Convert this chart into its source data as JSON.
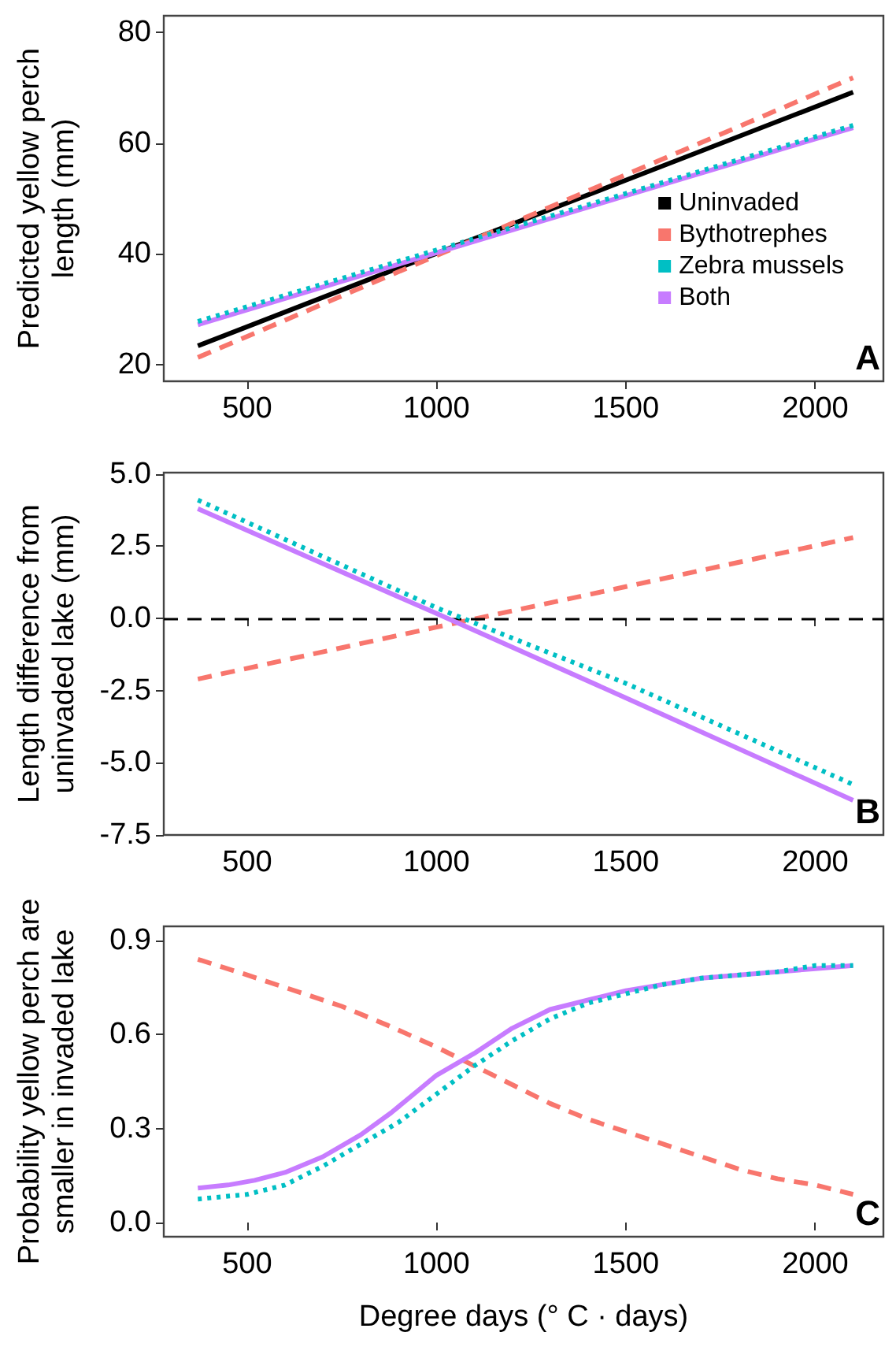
{
  "chart_data": [
    {
      "type": "line",
      "ylabel": "Predicted yellow perch\nlength (mm)",
      "x": [
        370,
        1000,
        1500,
        2100
      ],
      "xlim": [
        280,
        2180
      ],
      "xticks": [
        500,
        1000,
        1500,
        2000
      ],
      "ylim": [
        17,
        83
      ],
      "yticks": [
        20,
        40,
        60,
        80
      ],
      "grid": false,
      "legend": "bottom right",
      "annotations": [
        "A"
      ],
      "series": [
        {
          "name": "Uninvaded",
          "color": "#000000",
          "line_style": "solid",
          "values": [
            23.4,
            40.1,
            53.3,
            69.2
          ]
        },
        {
          "name": "Bythotrephes",
          "color": "#f8766d",
          "line_style": "dashed",
          "values": [
            21.3,
            39.7,
            54.3,
            71.8
          ]
        },
        {
          "name": "Zebra mussels",
          "color": "#00bfc4",
          "line_style": "dotted",
          "values": [
            27.8,
            40.7,
            50.9,
            63.2
          ]
        },
        {
          "name": "Both",
          "color": "#c77cff",
          "line_style": "solid",
          "values": [
            27.2,
            40.2,
            50.5,
            62.8
          ]
        }
      ]
    },
    {
      "type": "line",
      "ylabel": "Length difference from\nuninvaded lake (mm)",
      "x": [
        370,
        1000,
        1500,
        2100
      ],
      "xlim": [
        280,
        2180
      ],
      "xticks": [
        500,
        1000,
        1500,
        2000
      ],
      "ylim": [
        -7.5,
        5.05
      ],
      "yticks": [
        {
          "value": -7.5,
          "label": "-7.5"
        },
        {
          "value": -5,
          "label": "-5.0"
        },
        {
          "value": -2.5,
          "label": "-2.5"
        },
        {
          "value": 0,
          "label": "0.0"
        },
        {
          "value": 2.5,
          "label": "2.5"
        },
        {
          "value": 5,
          "label": "5.0"
        }
      ],
      "grid": false,
      "annotations": [
        "B"
      ],
      "ref_lines": [
        {
          "axis": "y",
          "value": 0,
          "label": null,
          "color": "#000000",
          "line_style": "dashed"
        }
      ],
      "series": [
        {
          "color": "#f8766d",
          "line_style": "dashed",
          "values": [
            -2.1,
            -0.3,
            1.1,
            2.8
          ]
        },
        {
          "color": "#00bfc4",
          "line_style": "dotted",
          "values": [
            4.1,
            0.37,
            -2.25,
            -5.75
          ]
        },
        {
          "color": "#c77cff",
          "line_style": "solid",
          "values": [
            3.8,
            0.17,
            -2.75,
            -6.3
          ]
        }
      ]
    },
    {
      "type": "line",
      "ylabel": "Probability yellow perch are\nsmaller in invaded lake",
      "xlabel": "Degree days (° C · days)",
      "xlim": [
        280,
        2180
      ],
      "xticks": [
        500,
        1000,
        1500,
        2000
      ],
      "ylim": [
        -0.045,
        0.945
      ],
      "yticks": [
        {
          "value": 0,
          "label": "0.0"
        },
        {
          "value": 0.3,
          "label": "0.3"
        },
        {
          "value": 0.6,
          "label": "0.6"
        },
        {
          "value": 0.9,
          "label": "0.9"
        }
      ],
      "grid": false,
      "annotations": [
        "C"
      ],
      "series": [
        {
          "color": "#f8766d",
          "line_style": "dashed",
          "x": [
            370,
            500,
            600,
            750,
            870,
            1000,
            1100,
            1200,
            1300,
            1400,
            1500,
            1600,
            1700,
            1800,
            1900,
            2000,
            2100
          ],
          "values": [
            0.84,
            0.79,
            0.75,
            0.69,
            0.63,
            0.56,
            0.5,
            0.44,
            0.38,
            0.33,
            0.29,
            0.25,
            0.21,
            0.17,
            0.14,
            0.12,
            0.09
          ]
        },
        {
          "color": "#00bfc4",
          "line_style": "dotted",
          "x": [
            370,
            500,
            600,
            700,
            800,
            900,
            1000,
            1100,
            1200,
            1300,
            1400,
            1500,
            1600,
            1700,
            1800,
            1900,
            2000,
            2100
          ],
          "values": [
            0.075,
            0.09,
            0.12,
            0.18,
            0.25,
            0.32,
            0.41,
            0.5,
            0.58,
            0.65,
            0.7,
            0.73,
            0.76,
            0.78,
            0.79,
            0.8,
            0.82,
            0.82
          ]
        },
        {
          "color": "#c77cff",
          "line_style": "solid",
          "x": [
            370,
            450,
            520,
            600,
            700,
            800,
            880,
            950,
            1000,
            1100,
            1200,
            1300,
            1400,
            1500,
            1600,
            1700,
            1800,
            1900,
            2000,
            2100
          ],
          "values": [
            0.11,
            0.12,
            0.135,
            0.16,
            0.21,
            0.28,
            0.35,
            0.42,
            0.47,
            0.54,
            0.62,
            0.68,
            0.71,
            0.74,
            0.76,
            0.78,
            0.79,
            0.8,
            0.81,
            0.82
          ]
        }
      ]
    }
  ]
}
